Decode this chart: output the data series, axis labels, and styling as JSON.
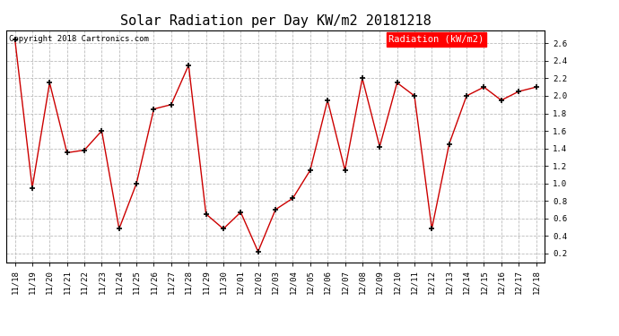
{
  "title": "Solar Radiation per Day KW/m2 20181218",
  "copyright": "Copyright 2018 Cartronics.com",
  "legend_label": "Radiation (kW/m2)",
  "dates": [
    "11/18",
    "11/19",
    "11/20",
    "11/21",
    "11/22",
    "11/23",
    "11/24",
    "11/25",
    "11/26",
    "11/27",
    "11/28",
    "11/29",
    "11/30",
    "12/01",
    "12/02",
    "12/03",
    "12/04",
    "12/05",
    "12/06",
    "12/07",
    "12/08",
    "12/09",
    "12/10",
    "12/11",
    "12/12",
    "12/13",
    "12/14",
    "12/15",
    "12/16",
    "12/17",
    "12/18"
  ],
  "values": [
    2.65,
    0.95,
    2.15,
    1.35,
    1.38,
    1.6,
    0.48,
    1.0,
    1.85,
    1.9,
    2.35,
    0.65,
    0.48,
    0.67,
    0.22,
    0.7,
    0.83,
    1.15,
    1.95,
    1.15,
    2.2,
    1.42,
    2.15,
    2.0,
    0.48,
    1.45,
    2.0,
    2.1,
    1.95,
    2.05,
    2.1
  ],
  "line_color": "#cc0000",
  "marker": "+",
  "marker_color": "#000000",
  "marker_size": 4,
  "background_color": "#ffffff",
  "grid_color": "#bbbbbb",
  "ylim": [
    0.1,
    2.75
  ],
  "yticks": [
    0.2,
    0.4,
    0.6,
    0.8,
    1.0,
    1.2,
    1.4,
    1.6,
    1.8,
    2.0,
    2.2,
    2.4,
    2.6
  ],
  "title_fontsize": 11,
  "copyright_fontsize": 6.5,
  "tick_fontsize": 6.5,
  "legend_fontsize": 7.5,
  "legend_bg": "#ff0000",
  "legend_text_color": "#ffffff"
}
